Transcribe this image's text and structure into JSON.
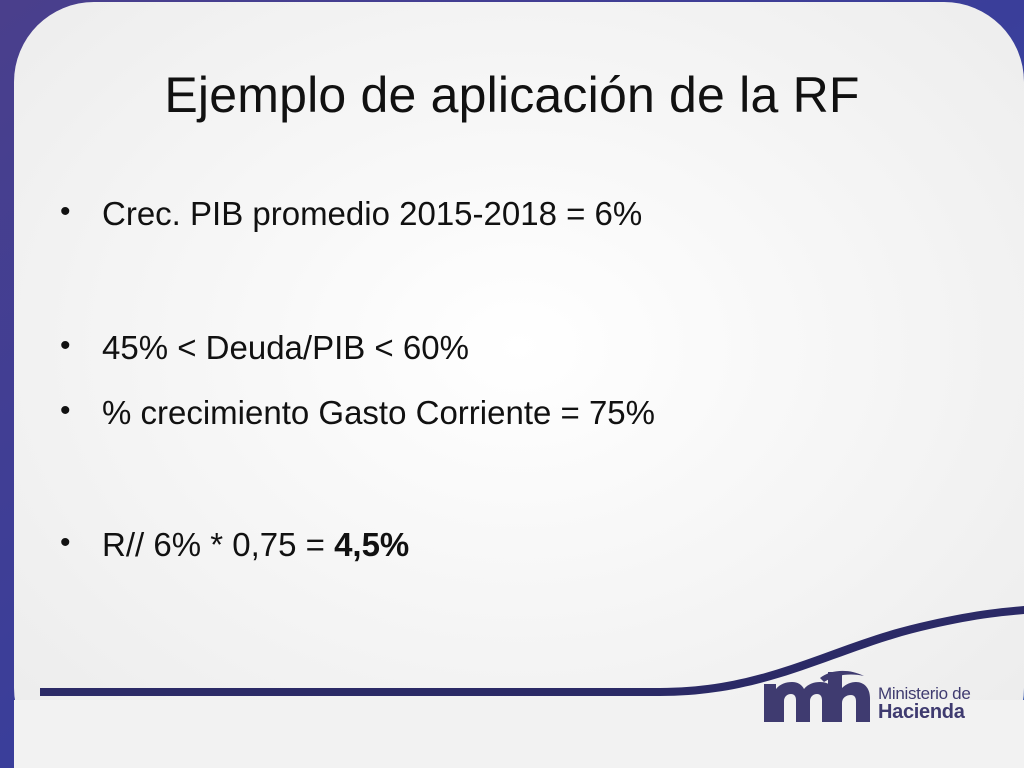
{
  "slide": {
    "title": "Ejemplo de aplicación de la RF",
    "bullets": [
      {
        "text": "Crec. PIB promedio 2015-2018 = 6%"
      },
      {
        "text": "45% < Deuda/PIB < 60%"
      },
      {
        "text": "% crecimiento Gasto Corriente = 75%"
      },
      {
        "text": "R// 6% * 0,75 = ",
        "strong": "4,5%"
      }
    ],
    "bullet_glyph": "•"
  },
  "logo": {
    "line1": "Ministerio de",
    "line2": "Hacienda",
    "color": "#3f3b70",
    "accent": "#2b2a66"
  }
}
